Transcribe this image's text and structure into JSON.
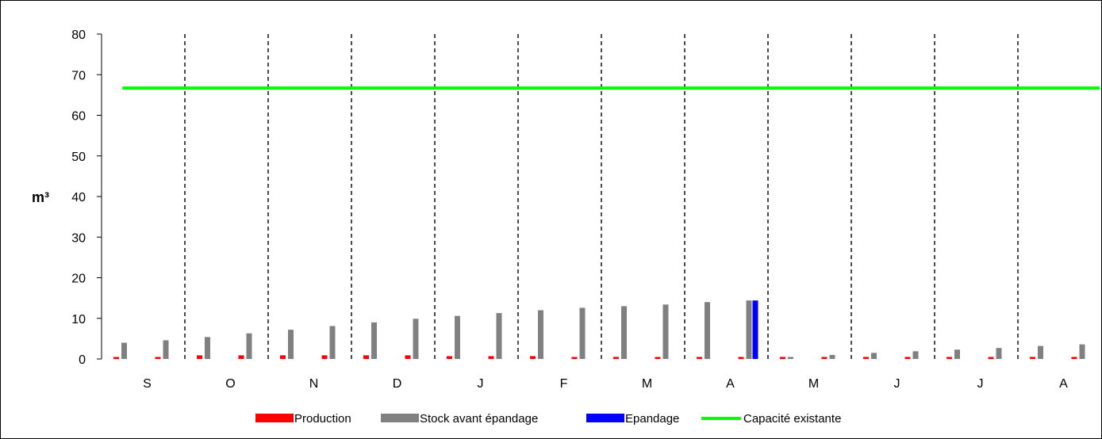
{
  "chart_data": {
    "type": "bar",
    "ylabel": "m³",
    "ylim": [
      0,
      80
    ],
    "yticks": [
      0,
      10,
      20,
      30,
      40,
      50,
      60,
      70,
      80
    ],
    "grid": false,
    "legend_position": "bottom",
    "month_labels": [
      "S",
      "O",
      "N",
      "D",
      "J",
      "F",
      "M",
      "A",
      "M",
      "J",
      "J",
      "A"
    ],
    "series": [
      {
        "name": "Production",
        "color": "#ff0000",
        "values": [
          0.5,
          0.5,
          0.9,
          0.9,
          0.9,
          0.9,
          0.9,
          0.9,
          0.7,
          0.7,
          0.7,
          0.5,
          0.5,
          0.5,
          0.5,
          0.5,
          0.5,
          0.5,
          0.5,
          0.5,
          0.5,
          0.5,
          0.5,
          0.5
        ]
      },
      {
        "name": "Stock avant épandage",
        "color": "#808080",
        "values": [
          4.0,
          4.6,
          5.4,
          6.3,
          7.2,
          8.1,
          9.0,
          9.9,
          10.6,
          11.3,
          12.0,
          12.6,
          13.0,
          13.4,
          14.0,
          14.4,
          0.5,
          1.0,
          1.5,
          1.9,
          2.3,
          2.7,
          3.2,
          3.6
        ]
      },
      {
        "name": "Epandage",
        "color": "#0000ff",
        "values": [
          0,
          0,
          0,
          0,
          0,
          0,
          0,
          0,
          0,
          0,
          0,
          0,
          0,
          0,
          0,
          14.4,
          0,
          0,
          0,
          0,
          0,
          0,
          0,
          0
        ]
      },
      {
        "name": "Capacité existante",
        "color": "#00ff00",
        "type": "line",
        "value": 66.7
      }
    ]
  }
}
